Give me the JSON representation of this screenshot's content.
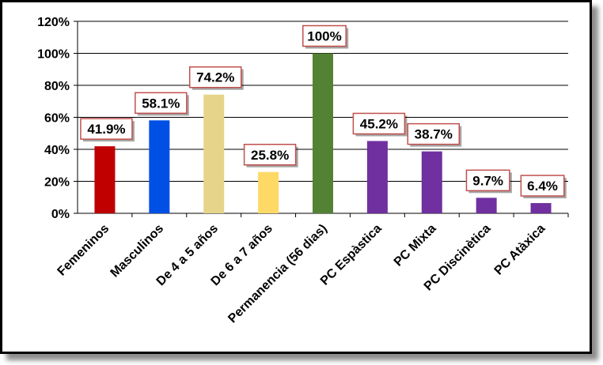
{
  "chart_data": {
    "type": "bar",
    "categories": [
      "Femeninos",
      "Masculinos",
      "De 4 a 5 años",
      "De 6 a 7 años",
      "Permanencia (56 dias)",
      "PC Espàstica",
      "PC Mixta",
      "PC Discinètica",
      "PC Atàxica"
    ],
    "values": [
      41.9,
      58.1,
      74.2,
      25.8,
      100,
      45.2,
      38.7,
      9.7,
      6.4
    ],
    "data_labels": [
      "41.9%",
      "58.1%",
      "74.2%",
      "25.8%",
      "100%",
      "45.2%",
      "38.7%",
      "9.7%",
      "6.4%"
    ],
    "colors": [
      "#c00000",
      "#0050e6",
      "#e6d48a",
      "#ffd966",
      "#548235",
      "#7030a0",
      "#7030a0",
      "#7030a0",
      "#7030a0"
    ],
    "ylim": [
      0,
      120
    ],
    "yticks": [
      0,
      20,
      40,
      60,
      80,
      100,
      120
    ],
    "ytick_labels": [
      "0%",
      "20%",
      "40%",
      "60%",
      "80%",
      "100%",
      "120%"
    ],
    "grid": true,
    "legend": "none",
    "title": "",
    "xlabel": "",
    "ylabel": "",
    "label_box_color": "#c0504d",
    "gridline_color": "#000000"
  }
}
